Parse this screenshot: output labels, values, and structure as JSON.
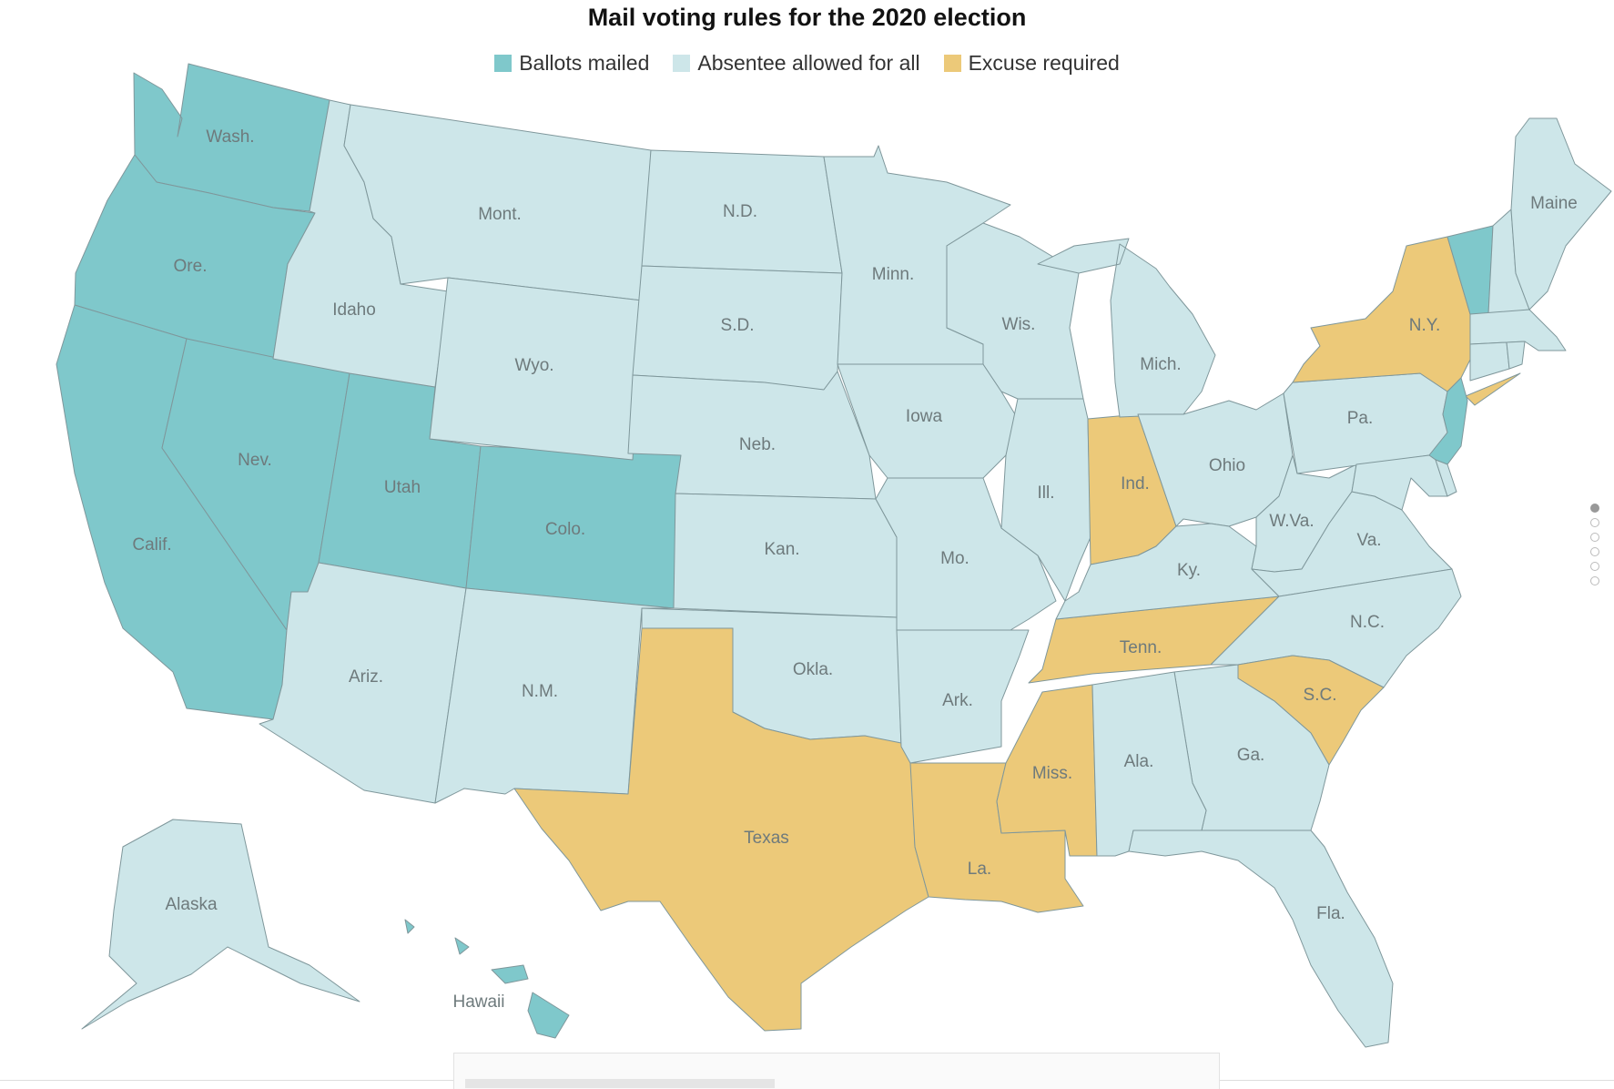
{
  "title": "Mail voting rules for the 2020 election",
  "colors": {
    "mailed": "#7fc8cb",
    "absentee": "#cde6e9",
    "excuse": "#ecc979"
  },
  "legend": [
    {
      "key": "mailed",
      "label": "Ballots mailed"
    },
    {
      "key": "absentee",
      "label": "Absentee allowed for all"
    },
    {
      "key": "excuse",
      "label": "Excuse required"
    }
  ],
  "states": {
    "wa": {
      "label": "Wash.",
      "category": "mailed"
    },
    "or": {
      "label": "Ore.",
      "category": "mailed"
    },
    "ca": {
      "label": "Calif.",
      "category": "mailed"
    },
    "nv": {
      "label": "Nev.",
      "category": "mailed"
    },
    "ut": {
      "label": "Utah",
      "category": "mailed"
    },
    "co": {
      "label": "Colo.",
      "category": "mailed"
    },
    "hi": {
      "label": "Hawaii",
      "category": "mailed"
    },
    "vt": {
      "label": "",
      "category": "mailed"
    },
    "nj": {
      "label": "",
      "category": "mailed"
    },
    "id": {
      "label": "Idaho",
      "category": "absentee"
    },
    "mt": {
      "label": "Mont.",
      "category": "absentee"
    },
    "wy": {
      "label": "Wyo.",
      "category": "absentee"
    },
    "az": {
      "label": "Ariz.",
      "category": "absentee"
    },
    "nm": {
      "label": "N.M.",
      "category": "absentee"
    },
    "nd": {
      "label": "N.D.",
      "category": "absentee"
    },
    "sd": {
      "label": "S.D.",
      "category": "absentee"
    },
    "ne": {
      "label": "Neb.",
      "category": "absentee"
    },
    "ks": {
      "label": "Kan.",
      "category": "absentee"
    },
    "ok": {
      "label": "Okla.",
      "category": "absentee"
    },
    "mn": {
      "label": "Minn.",
      "category": "absentee"
    },
    "ia": {
      "label": "Iowa",
      "category": "absentee"
    },
    "mo": {
      "label": "Mo.",
      "category": "absentee"
    },
    "ar": {
      "label": "Ark.",
      "category": "absentee"
    },
    "wi": {
      "label": "Wis.",
      "category": "absentee"
    },
    "il": {
      "label": "Ill.",
      "category": "absentee"
    },
    "mi": {
      "label": "Mich.",
      "category": "absentee"
    },
    "oh": {
      "label": "Ohio",
      "category": "absentee"
    },
    "ky": {
      "label": "Ky.",
      "category": "absentee"
    },
    "wv": {
      "label": "W.Va.",
      "category": "absentee"
    },
    "va": {
      "label": "Va.",
      "category": "absentee"
    },
    "nc": {
      "label": "N.C.",
      "category": "absentee"
    },
    "pa": {
      "label": "Pa.",
      "category": "absentee"
    },
    "al": {
      "label": "Ala.",
      "category": "absentee"
    },
    "ga": {
      "label": "Ga.",
      "category": "absentee"
    },
    "fl": {
      "label": "Fla.",
      "category": "absentee"
    },
    "me": {
      "label": "Maine",
      "category": "absentee"
    },
    "nh": {
      "label": "",
      "category": "absentee"
    },
    "ma": {
      "label": "",
      "category": "absentee"
    },
    "ct": {
      "label": "",
      "category": "absentee"
    },
    "ri": {
      "label": "",
      "category": "absentee"
    },
    "md": {
      "label": "",
      "category": "absentee"
    },
    "de": {
      "label": "",
      "category": "absentee"
    },
    "ak": {
      "label": "Alaska",
      "category": "absentee"
    },
    "tx": {
      "label": "Texas",
      "category": "excuse"
    },
    "la": {
      "label": "La.",
      "category": "excuse"
    },
    "ms": {
      "label": "Miss.",
      "category": "excuse"
    },
    "tn": {
      "label": "Tenn.",
      "category": "excuse"
    },
    "sc": {
      "label": "S.C.",
      "category": "excuse"
    },
    "in": {
      "label": "Ind.",
      "category": "excuse"
    },
    "ny": {
      "label": "N.Y.",
      "category": "excuse"
    }
  }
}
